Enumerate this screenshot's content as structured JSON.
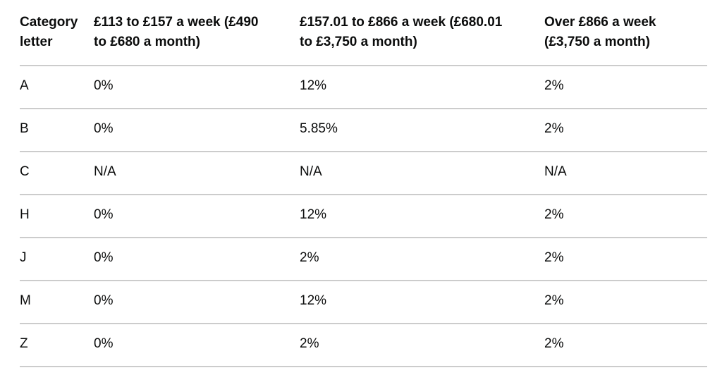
{
  "colors": {
    "text": "#0b0c0c",
    "border": "#cccccc",
    "background": "#ffffff"
  },
  "table": {
    "columns": [
      "Category\nletter",
      "£113 to £157 a week (£490\nto £680 a month)",
      "£157.01 to £866 a week (£680.01\nto £3,750 a month)",
      "Over £866 a week\n(£3,750 a month)"
    ],
    "rows": [
      {
        "letter": "A",
        "values": [
          "0%",
          "12%",
          "2%"
        ]
      },
      {
        "letter": "B",
        "values": [
          "0%",
          "5.85%",
          "2%"
        ]
      },
      {
        "letter": "C",
        "values": [
          "N/A",
          "N/A",
          "N/A"
        ]
      },
      {
        "letter": "H",
        "values": [
          "0%",
          "12%",
          "2%"
        ]
      },
      {
        "letter": "J",
        "values": [
          "0%",
          "2%",
          "2%"
        ]
      },
      {
        "letter": "M",
        "values": [
          "0%",
          "12%",
          "2%"
        ]
      },
      {
        "letter": "Z",
        "values": [
          "0%",
          "2%",
          "2%"
        ]
      }
    ]
  },
  "chart_data": {
    "type": "table",
    "columns": [
      "Category letter",
      "£113 to £157 a week (£490 to £680 a month)",
      "£157.01 to £866 a week (£680.01 to £3,750 a month)",
      "Over £866 a week (£3,750 a month)"
    ],
    "rows": [
      [
        "A",
        "0%",
        "12%",
        "2%"
      ],
      [
        "B",
        "0%",
        "5.85%",
        "2%"
      ],
      [
        "C",
        "N/A",
        "N/A",
        "N/A"
      ],
      [
        "H",
        "0%",
        "12%",
        "2%"
      ],
      [
        "J",
        "0%",
        "2%",
        "2%"
      ],
      [
        "M",
        "0%",
        "12%",
        "2%"
      ],
      [
        "Z",
        "0%",
        "2%",
        "2%"
      ]
    ]
  }
}
